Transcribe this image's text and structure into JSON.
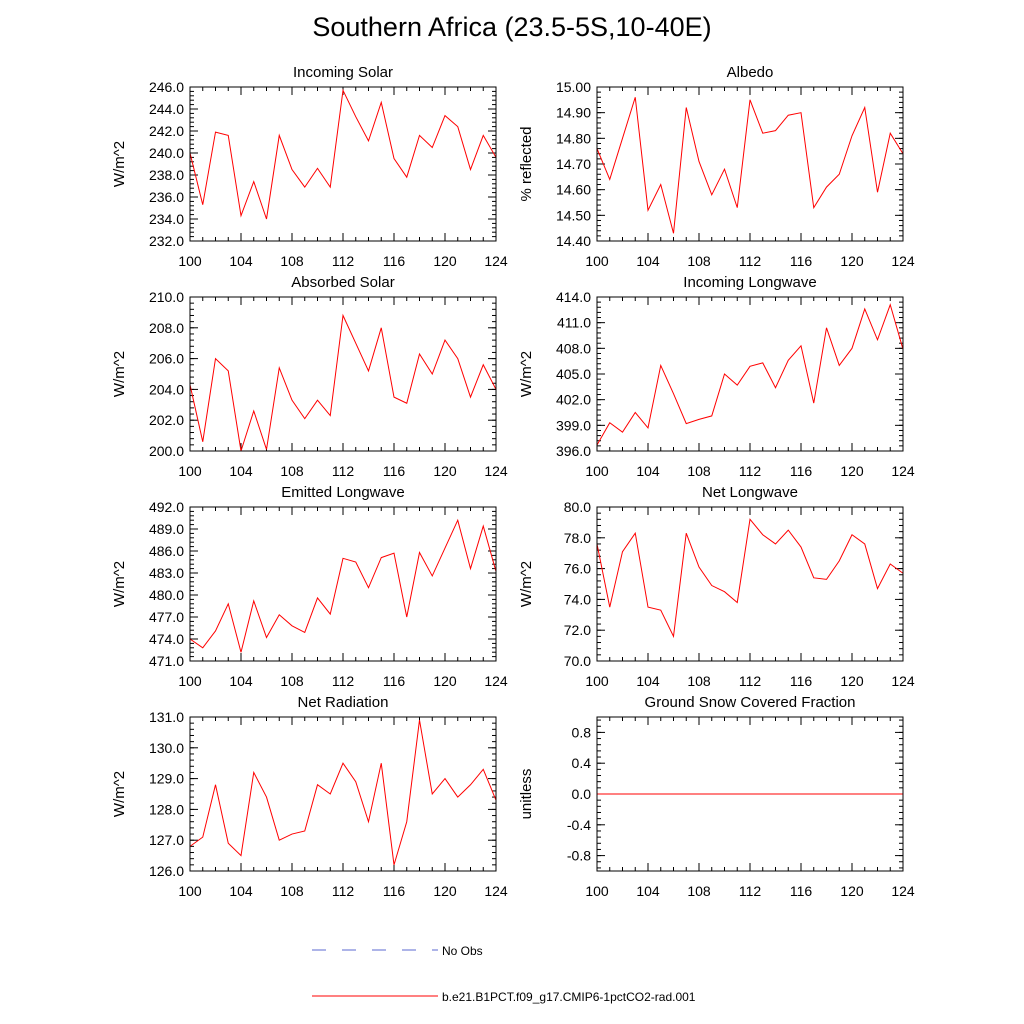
{
  "title": "Southern Africa (23.5-5S,10-40E)",
  "legend": [
    {
      "label": "No Obs",
      "color": "#5b6ad0",
      "style": "dashed"
    },
    {
      "label": "b.e21.B1PCT.f09_g17.CMIP6-1pctCO2-rad.001",
      "color": "#ff0000",
      "style": "solid"
    }
  ],
  "chart_data": [
    {
      "type": "line",
      "title": "Incoming Solar",
      "xlabel": "",
      "ylabel": "W/m^2",
      "xlim": [
        100,
        124
      ],
      "ylim": [
        232,
        246
      ],
      "xticks": [
        100,
        104,
        108,
        112,
        116,
        120,
        124
      ],
      "yticks": [
        232,
        234,
        236,
        238,
        240,
        242,
        244,
        246
      ],
      "ydecimals": 1,
      "x": [
        100,
        101,
        102,
        103,
        104,
        105,
        106,
        107,
        108,
        109,
        110,
        111,
        112,
        113,
        114,
        115,
        116,
        117,
        118,
        119,
        120,
        121,
        122,
        123,
        124
      ],
      "series": [
        {
          "name": "b.e21.B1PCT.f09_g17.CMIP6-1pctCO2-rad.001",
          "color": "#ff0000",
          "values": [
            240.0,
            235.3,
            241.9,
            241.6,
            234.3,
            237.4,
            234.0,
            241.6,
            238.5,
            236.9,
            238.6,
            236.9,
            245.7,
            243.3,
            241.1,
            244.6,
            239.5,
            237.8,
            241.6,
            240.5,
            243.4,
            242.4,
            238.5,
            241.6,
            239.6
          ]
        }
      ]
    },
    {
      "type": "line",
      "title": "Albedo",
      "xlabel": "",
      "ylabel": "% reflected",
      "xlim": [
        100,
        124
      ],
      "ylim": [
        14.4,
        15.0
      ],
      "xticks": [
        100,
        104,
        108,
        112,
        116,
        120,
        124
      ],
      "yticks": [
        14.4,
        14.5,
        14.6,
        14.7,
        14.8,
        14.9,
        15.0
      ],
      "ydecimals": 2,
      "x": [
        100,
        101,
        102,
        103,
        104,
        105,
        106,
        107,
        108,
        109,
        110,
        111,
        112,
        113,
        114,
        115,
        116,
        117,
        118,
        119,
        120,
        121,
        122,
        123,
        124
      ],
      "series": [
        {
          "name": "b.e21.B1PCT.f09_g17.CMIP6-1pctCO2-rad.001",
          "color": "#ff0000",
          "values": [
            14.76,
            14.64,
            14.8,
            14.96,
            14.52,
            14.62,
            14.43,
            14.92,
            14.71,
            14.58,
            14.68,
            14.53,
            14.95,
            14.82,
            14.83,
            14.89,
            14.9,
            14.53,
            14.61,
            14.66,
            14.81,
            14.92,
            14.59,
            14.82,
            14.74
          ]
        }
      ]
    },
    {
      "type": "line",
      "title": "Absorbed Solar",
      "xlabel": "",
      "ylabel": "W/m^2",
      "xlim": [
        100,
        124
      ],
      "ylim": [
        200,
        210
      ],
      "xticks": [
        100,
        104,
        108,
        112,
        116,
        120,
        124
      ],
      "yticks": [
        200,
        202,
        204,
        206,
        208,
        210
      ],
      "ydecimals": 1,
      "x": [
        100,
        101,
        102,
        103,
        104,
        105,
        106,
        107,
        108,
        109,
        110,
        111,
        112,
        113,
        114,
        115,
        116,
        117,
        118,
        119,
        120,
        121,
        122,
        123,
        124
      ],
      "series": [
        {
          "name": "b.e21.B1PCT.f09_g17.CMIP6-1pctCO2-rad.001",
          "color": "#ff0000",
          "values": [
            204.3,
            200.6,
            206.0,
            205.2,
            200.0,
            202.6,
            200.1,
            205.4,
            203.3,
            202.1,
            203.3,
            202.3,
            208.8,
            207.0,
            205.2,
            208.0,
            203.5,
            203.1,
            206.3,
            205.0,
            207.2,
            206.0,
            203.5,
            205.6,
            204.0
          ]
        }
      ]
    },
    {
      "type": "line",
      "title": "Incoming Longwave",
      "xlabel": "",
      "ylabel": "W/m^2",
      "xlim": [
        100,
        124
      ],
      "ylim": [
        396,
        414
      ],
      "xticks": [
        100,
        104,
        108,
        112,
        116,
        120,
        124
      ],
      "yticks": [
        396,
        399,
        402,
        405,
        408,
        411,
        414
      ],
      "ydecimals": 1,
      "x": [
        100,
        101,
        102,
        103,
        104,
        105,
        106,
        107,
        108,
        109,
        110,
        111,
        112,
        113,
        114,
        115,
        116,
        117,
        118,
        119,
        120,
        121,
        122,
        123,
        124
      ],
      "series": [
        {
          "name": "b.e21.B1PCT.f09_g17.CMIP6-1pctCO2-rad.001",
          "color": "#ff0000",
          "values": [
            396.7,
            399.3,
            398.2,
            400.5,
            398.7,
            406.0,
            402.7,
            399.2,
            399.7,
            400.1,
            405.0,
            403.7,
            405.9,
            406.3,
            403.4,
            406.6,
            408.3,
            401.6,
            410.4,
            406.0,
            408.0,
            412.6,
            409.0,
            413.1,
            407.9
          ]
        }
      ]
    },
    {
      "type": "line",
      "title": "Emitted Longwave",
      "xlabel": "",
      "ylabel": "W/m^2",
      "xlim": [
        100,
        124
      ],
      "ylim": [
        471,
        492
      ],
      "xticks": [
        100,
        104,
        108,
        112,
        116,
        120,
        124
      ],
      "yticks": [
        471,
        474,
        477,
        480,
        483,
        486,
        489,
        492
      ],
      "ydecimals": 1,
      "x": [
        100,
        101,
        102,
        103,
        104,
        105,
        106,
        107,
        108,
        109,
        110,
        111,
        112,
        113,
        114,
        115,
        116,
        117,
        118,
        119,
        120,
        121,
        122,
        123,
        124
      ],
      "series": [
        {
          "name": "b.e21.B1PCT.f09_g17.CMIP6-1pctCO2-rad.001",
          "color": "#ff0000",
          "values": [
            474.0,
            472.8,
            475.1,
            478.8,
            472.2,
            479.2,
            474.2,
            477.3,
            475.8,
            474.9,
            479.6,
            477.4,
            485.0,
            484.5,
            481.0,
            485.1,
            485.7,
            477.0,
            485.8,
            482.6,
            486.4,
            490.2,
            483.6,
            489.4,
            483.2
          ]
        }
      ]
    },
    {
      "type": "line",
      "title": "Net Longwave",
      "xlabel": "",
      "ylabel": "W/m^2",
      "xlim": [
        100,
        124
      ],
      "ylim": [
        70,
        80
      ],
      "xticks": [
        100,
        104,
        108,
        112,
        116,
        120,
        124
      ],
      "yticks": [
        70,
        72,
        74,
        76,
        78,
        80
      ],
      "ydecimals": 1,
      "x": [
        100,
        101,
        102,
        103,
        104,
        105,
        106,
        107,
        108,
        109,
        110,
        111,
        112,
        113,
        114,
        115,
        116,
        117,
        118,
        119,
        120,
        121,
        122,
        123,
        124
      ],
      "series": [
        {
          "name": "b.e21.B1PCT.f09_g17.CMIP6-1pctCO2-rad.001",
          "color": "#ff0000",
          "values": [
            77.6,
            73.5,
            77.1,
            78.3,
            73.5,
            73.3,
            71.6,
            78.3,
            76.1,
            74.9,
            74.5,
            73.8,
            79.2,
            78.2,
            77.6,
            78.5,
            77.4,
            75.4,
            75.3,
            76.5,
            78.2,
            77.6,
            74.7,
            76.3,
            75.7
          ]
        }
      ]
    },
    {
      "type": "line",
      "title": "Net Radiation",
      "xlabel": "",
      "ylabel": "W/m^2",
      "xlim": [
        100,
        124
      ],
      "ylim": [
        126,
        131
      ],
      "xticks": [
        100,
        104,
        108,
        112,
        116,
        120,
        124
      ],
      "yticks": [
        126,
        127,
        128,
        129,
        130,
        131
      ],
      "ydecimals": 1,
      "x": [
        100,
        101,
        102,
        103,
        104,
        105,
        106,
        107,
        108,
        109,
        110,
        111,
        112,
        113,
        114,
        115,
        116,
        117,
        118,
        119,
        120,
        121,
        122,
        123,
        124
      ],
      "series": [
        {
          "name": "b.e21.B1PCT.f09_g17.CMIP6-1pctCO2-rad.001",
          "color": "#ff0000",
          "values": [
            126.8,
            127.1,
            128.8,
            126.9,
            126.5,
            129.2,
            128.4,
            127.0,
            127.2,
            127.3,
            128.8,
            128.5,
            129.5,
            128.9,
            127.6,
            129.5,
            126.2,
            127.6,
            130.9,
            128.5,
            129.0,
            128.4,
            128.8,
            129.3,
            128.3
          ]
        }
      ]
    },
    {
      "type": "line",
      "title": "Ground Snow Covered Fraction",
      "xlabel": "",
      "ylabel": "unitless",
      "xlim": [
        100,
        124
      ],
      "ylim": [
        -1,
        1
      ],
      "xticks": [
        100,
        104,
        108,
        112,
        116,
        120,
        124
      ],
      "yticks": [
        -0.8,
        -0.4,
        0.0,
        0.4,
        0.8
      ],
      "ydecimals": 1,
      "x": [
        100,
        101,
        102,
        103,
        104,
        105,
        106,
        107,
        108,
        109,
        110,
        111,
        112,
        113,
        114,
        115,
        116,
        117,
        118,
        119,
        120,
        121,
        122,
        123,
        124
      ],
      "series": [
        {
          "name": "b.e21.B1PCT.f09_g17.CMIP6-1pctCO2-rad.001",
          "color": "#ff0000",
          "values": [
            0,
            0,
            0,
            0,
            0,
            0,
            0,
            0,
            0,
            0,
            0,
            0,
            0,
            0,
            0,
            0,
            0,
            0,
            0,
            0,
            0,
            0,
            0,
            0,
            0
          ]
        }
      ]
    }
  ]
}
